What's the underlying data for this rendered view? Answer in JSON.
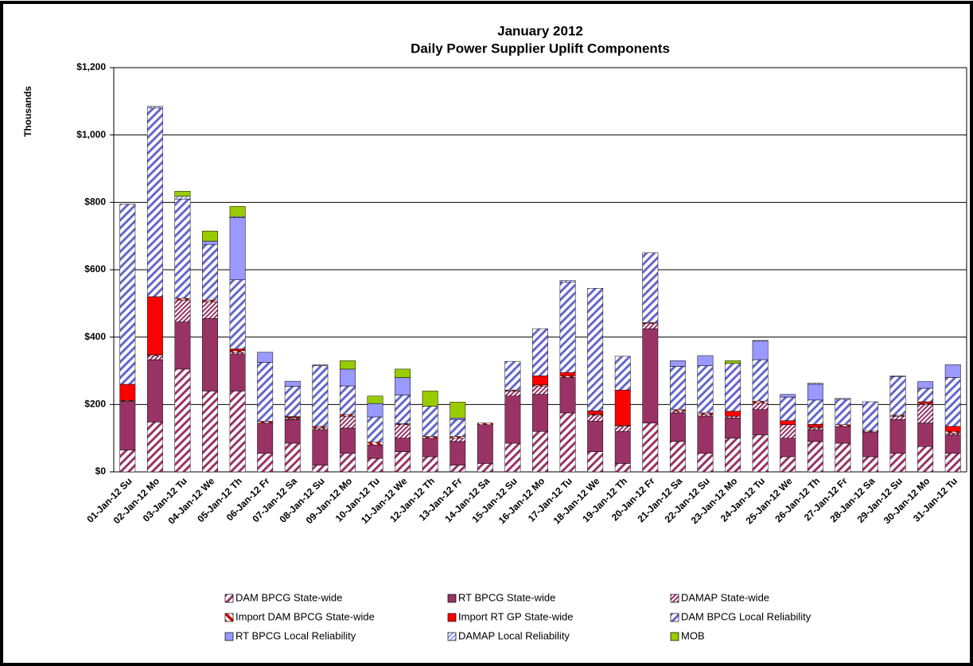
{
  "chart_data": {
    "type": "stacked_bar",
    "title": "January 2012",
    "subtitle": "Daily Power Supplier Uplift Components",
    "y_label": "Thousands",
    "ylim": [
      0,
      1200
    ],
    "yticks": [
      {
        "value": 0,
        "label": "$0"
      },
      {
        "value": 200,
        "label": "$200"
      },
      {
        "value": 400,
        "label": "$400"
      },
      {
        "value": 600,
        "label": "$600"
      },
      {
        "value": 800,
        "label": "$800"
      },
      {
        "value": 1000,
        "label": "$1,000"
      },
      {
        "value": 1200,
        "label": "$1,200"
      }
    ],
    "grid": true,
    "legend": "bottom",
    "categories": [
      "01-Jan-12 Su",
      "02-Jan-12 Mo",
      "03-Jan-12 Tu",
      "04-Jan-12 We",
      "05-Jan-12 Th",
      "06-Jan-12 Fr",
      "07-Jan-12 Sa",
      "08-Jan-12 Su",
      "09-Jan-12 Mo",
      "10-Jan-12 Tu",
      "11-Jan-12 We",
      "12-Jan-12 Th",
      "13-Jan-12 Fr",
      "14-Jan-12 Sa",
      "15-Jan-12 Su",
      "16-Jan-12 Mo",
      "17-Jan-12 Tu",
      "18-Jan-12 We",
      "19-Jan-12 Th",
      "20-Jan-12 Fr",
      "21-Jan-12 Sa",
      "22-Jan-12 Su",
      "23-Jan-12 Mo",
      "24-Jan-12 Tu",
      "25-Jan-12 We",
      "26-Jan-12 Th",
      "27-Jan-12 Fr",
      "28-Jan-12 Sa",
      "29-Jan-12 Su",
      "30-Jan-12 Mo",
      "31-Jan-12 Tu"
    ],
    "series": [
      {
        "name": "DAM BPCG State-wide",
        "color": "#993366",
        "fill_style": "hatch",
        "values": [
          65,
          148,
          305,
          240,
          240,
          55,
          85,
          20,
          55,
          40,
          60,
          45,
          20,
          25,
          85,
          120,
          175,
          60,
          25,
          145,
          90,
          55,
          100,
          110,
          45,
          90,
          85,
          45,
          55,
          75,
          55
        ]
      },
      {
        "name": "RT BPCG State-wide",
        "color": "#993366",
        "fill_style": "solid",
        "values": [
          145,
          185,
          140,
          215,
          110,
          90,
          70,
          105,
          75,
          40,
          40,
          55,
          70,
          115,
          140,
          110,
          105,
          90,
          95,
          280,
          85,
          110,
          60,
          75,
          55,
          35,
          50,
          73,
          100,
          70,
          55
        ]
      },
      {
        "name": "DAMAP State-wide",
        "color": "#993366",
        "fill_style": "dense-hatch",
        "values": [
          0,
          12,
          65,
          50,
          5,
          0,
          3,
          5,
          35,
          0,
          40,
          0,
          10,
          0,
          15,
          25,
          0,
          18,
          15,
          15,
          5,
          5,
          5,
          20,
          40,
          5,
          0,
          0,
          10,
          55,
          5
        ]
      },
      {
        "name": "Import DAM BPCG State-wide",
        "color": "#cc0000",
        "fill_style": "half",
        "values": [
          2,
          3,
          5,
          5,
          5,
          5,
          3,
          5,
          5,
          8,
          3,
          5,
          5,
          5,
          3,
          3,
          5,
          3,
          3,
          3,
          5,
          5,
          0,
          5,
          0,
          3,
          5,
          3,
          3,
          3,
          5
        ]
      },
      {
        "name": "Import RT GP State-wide",
        "color": "#ff0000",
        "fill_style": "solid",
        "values": [
          48,
          172,
          0,
          0,
          5,
          0,
          3,
          0,
          0,
          0,
          0,
          0,
          0,
          0,
          0,
          27,
          10,
          10,
          105,
          0,
          0,
          0,
          15,
          0,
          12,
          8,
          0,
          0,
          0,
          5,
          15
        ]
      },
      {
        "name": "DAM BPCG Local Reliability",
        "color": "#6666cc",
        "fill_style": "hatch",
        "values": [
          535,
          560,
          295,
          165,
          205,
          175,
          90,
          180,
          85,
          75,
          85,
          90,
          50,
          0,
          85,
          140,
          268,
          364,
          100,
          207,
          128,
          140,
          142,
          123,
          70,
          72,
          75,
          87,
          115,
          40,
          145
        ]
      },
      {
        "name": "RT BPCG Local Reliability",
        "color": "#9999ff",
        "fill_style": "solid",
        "values": [
          0,
          0,
          0,
          10,
          185,
          30,
          15,
          0,
          50,
          40,
          52,
          0,
          5,
          0,
          0,
          0,
          0,
          0,
          0,
          0,
          17,
          30,
          0,
          55,
          8,
          47,
          0,
          0,
          0,
          20,
          38
        ]
      },
      {
        "name": "DAMAP Local Reliability",
        "color": "#9999ff",
        "fill_style": "dense-hatch",
        "values": [
          0,
          5,
          8,
          0,
          3,
          0,
          0,
          3,
          0,
          0,
          0,
          0,
          0,
          0,
          0,
          0,
          5,
          0,
          0,
          0,
          0,
          0,
          0,
          2,
          0,
          3,
          3,
          0,
          2,
          0,
          0
        ]
      },
      {
        "name": "MOB",
        "color": "#99cc00",
        "fill_style": "solid",
        "values": [
          0,
          0,
          15,
          30,
          30,
          0,
          0,
          0,
          25,
          22,
          25,
          45,
          47,
          0,
          0,
          0,
          0,
          0,
          0,
          0,
          0,
          0,
          8,
          0,
          0,
          0,
          0,
          0,
          0,
          0,
          0
        ]
      }
    ]
  }
}
